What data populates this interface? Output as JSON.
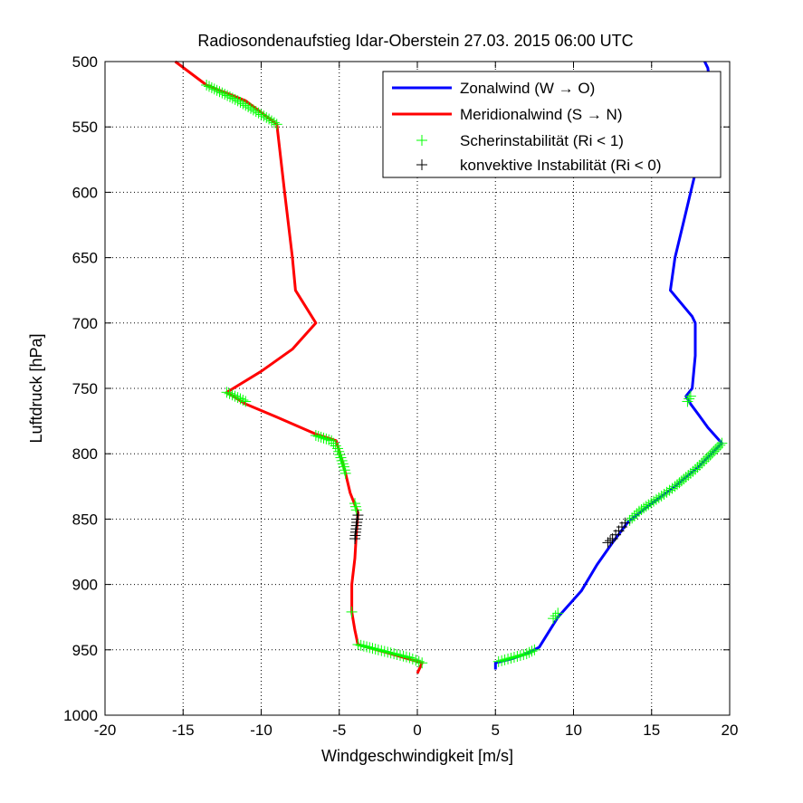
{
  "chart_data": {
    "type": "line",
    "title": "Radiosondenaufstieg Idar-Oberstein 27.03. 2015 06:00 UTC",
    "xlabel": "Windgeschwindigkeit [m/s]",
    "ylabel": "Luftdruck [hPa]",
    "xlim": [
      -20,
      20
    ],
    "ylim": [
      1000,
      500
    ],
    "y_reversed": true,
    "xticks": [
      "-20",
      "-15",
      "-10",
      "-5",
      "0",
      "5",
      "10",
      "15",
      "20"
    ],
    "yticks": [
      "500",
      "550",
      "600",
      "650",
      "700",
      "750",
      "800",
      "850",
      "900",
      "950",
      "1000"
    ],
    "grid": true,
    "legend_position": "top-right",
    "series": [
      {
        "name": "Zonalwind (W → O)",
        "color": "#0000ff",
        "points": [
          [
            5.0,
            965
          ],
          [
            5.0,
            960
          ],
          [
            6.0,
            957
          ],
          [
            7.0,
            953
          ],
          [
            7.8,
            948
          ],
          [
            9.0,
            925
          ],
          [
            10.5,
            905
          ],
          [
            11.5,
            885
          ],
          [
            12.5,
            868
          ],
          [
            13.5,
            852
          ],
          [
            15.0,
            838
          ],
          [
            16.5,
            825
          ],
          [
            18.0,
            810
          ],
          [
            19.5,
            792
          ],
          [
            18.6,
            780
          ],
          [
            18.0,
            770
          ],
          [
            17.5,
            762
          ],
          [
            17.2,
            756
          ],
          [
            17.6,
            750
          ],
          [
            17.8,
            725
          ],
          [
            17.8,
            700
          ],
          [
            17.6,
            695
          ],
          [
            16.2,
            675
          ],
          [
            16.5,
            650
          ],
          [
            17.0,
            625
          ],
          [
            17.5,
            600
          ],
          [
            18.0,
            575
          ],
          [
            18.5,
            550
          ],
          [
            18.8,
            525
          ],
          [
            18.6,
            505
          ],
          [
            18.4,
            500
          ]
        ]
      },
      {
        "name": "Meridionalwind (S → N)",
        "color": "#ff0000",
        "points": [
          [
            0.0,
            968
          ],
          [
            0.3,
            960
          ],
          [
            -2.0,
            952
          ],
          [
            -3.8,
            946
          ],
          [
            -4.0,
            935
          ],
          [
            -4.2,
            921
          ],
          [
            -4.2,
            900
          ],
          [
            -4.0,
            880
          ],
          [
            -3.9,
            860
          ],
          [
            -3.8,
            845
          ],
          [
            -4.3,
            830
          ],
          [
            -4.6,
            815
          ],
          [
            -5.0,
            798
          ],
          [
            -5.2,
            790
          ],
          [
            -6.5,
            785
          ],
          [
            -9.0,
            772
          ],
          [
            -11.0,
            762
          ],
          [
            -12.2,
            753
          ],
          [
            -10.0,
            737
          ],
          [
            -8.0,
            720
          ],
          [
            -6.5,
            700
          ],
          [
            -7.8,
            675
          ],
          [
            -8.0,
            650
          ],
          [
            -8.5,
            600
          ],
          [
            -9.0,
            548
          ],
          [
            -11.0,
            530
          ],
          [
            -13.5,
            518
          ],
          [
            -15.5,
            500
          ]
        ]
      }
    ],
    "markers": [
      {
        "name": "Scherinstabilität (Ri < 1)",
        "color": "#00ff00",
        "ranges": [
          [
            1,
            4
          ],
          [
            12,
            14
          ],
          [
            15,
            16
          ],
          [
            17,
            18
          ],
          [
            22,
            30
          ],
          [
            31,
            36
          ],
          [
            37,
            44
          ],
          [
            45,
            48
          ],
          [
            52,
            58
          ],
          [
            60,
            62
          ],
          [
            63,
            68
          ],
          [
            70,
            76
          ]
        ]
      },
      {
        "name": "konvektive Instabilität (Ri < 0)",
        "color": "#000000",
        "ranges": [
          [
            40,
            45
          ],
          [
            46,
            52
          ]
        ]
      }
    ],
    "shear_points_zonal": [
      [
        5.2,
        959
      ],
      [
        5.8,
        957
      ],
      [
        6.4,
        955
      ],
      [
        7.0,
        953
      ],
      [
        7.5,
        950
      ],
      [
        8.7,
        926
      ],
      [
        9.0,
        922
      ],
      [
        13.6,
        851
      ],
      [
        14.2,
        844
      ],
      [
        14.8,
        839
      ],
      [
        15.8,
        831
      ],
      [
        16.5,
        825
      ],
      [
        17.2,
        818
      ],
      [
        17.8,
        812
      ],
      [
        18.5,
        804
      ],
      [
        19.0,
        798
      ],
      [
        19.5,
        792
      ],
      [
        17.3,
        760
      ],
      [
        17.5,
        756
      ]
    ],
    "shear_points_meridional": [
      [
        -13.5,
        518
      ],
      [
        -12.5,
        524
      ],
      [
        -11.5,
        530
      ],
      [
        -10.5,
        537
      ],
      [
        -9.5,
        544
      ],
      [
        -9.0,
        548
      ],
      [
        -12.2,
        753
      ],
      [
        -11.5,
        757
      ],
      [
        -11.0,
        760
      ],
      [
        -6.5,
        786
      ],
      [
        -5.5,
        790
      ],
      [
        -5.1,
        796
      ],
      [
        -4.9,
        803
      ],
      [
        -4.7,
        810
      ],
      [
        -4.6,
        815
      ],
      [
        -4.0,
        838
      ],
      [
        -3.9,
        843
      ],
      [
        -4.2,
        921
      ],
      [
        -3.8,
        946
      ],
      [
        -2.5,
        950
      ],
      [
        -1.5,
        953
      ],
      [
        -0.5,
        956
      ],
      [
        0.3,
        960
      ]
    ],
    "convective_points_zonal": [
      [
        12.2,
        868
      ],
      [
        12.5,
        865
      ],
      [
        12.7,
        862
      ],
      [
        12.9,
        859
      ],
      [
        13.1,
        856
      ],
      [
        13.3,
        853
      ]
    ],
    "convective_points_meridional": [
      [
        -4.0,
        865
      ],
      [
        -3.95,
        860
      ],
      [
        -3.9,
        855
      ],
      [
        -3.85,
        850
      ],
      [
        -3.8,
        847
      ]
    ]
  }
}
